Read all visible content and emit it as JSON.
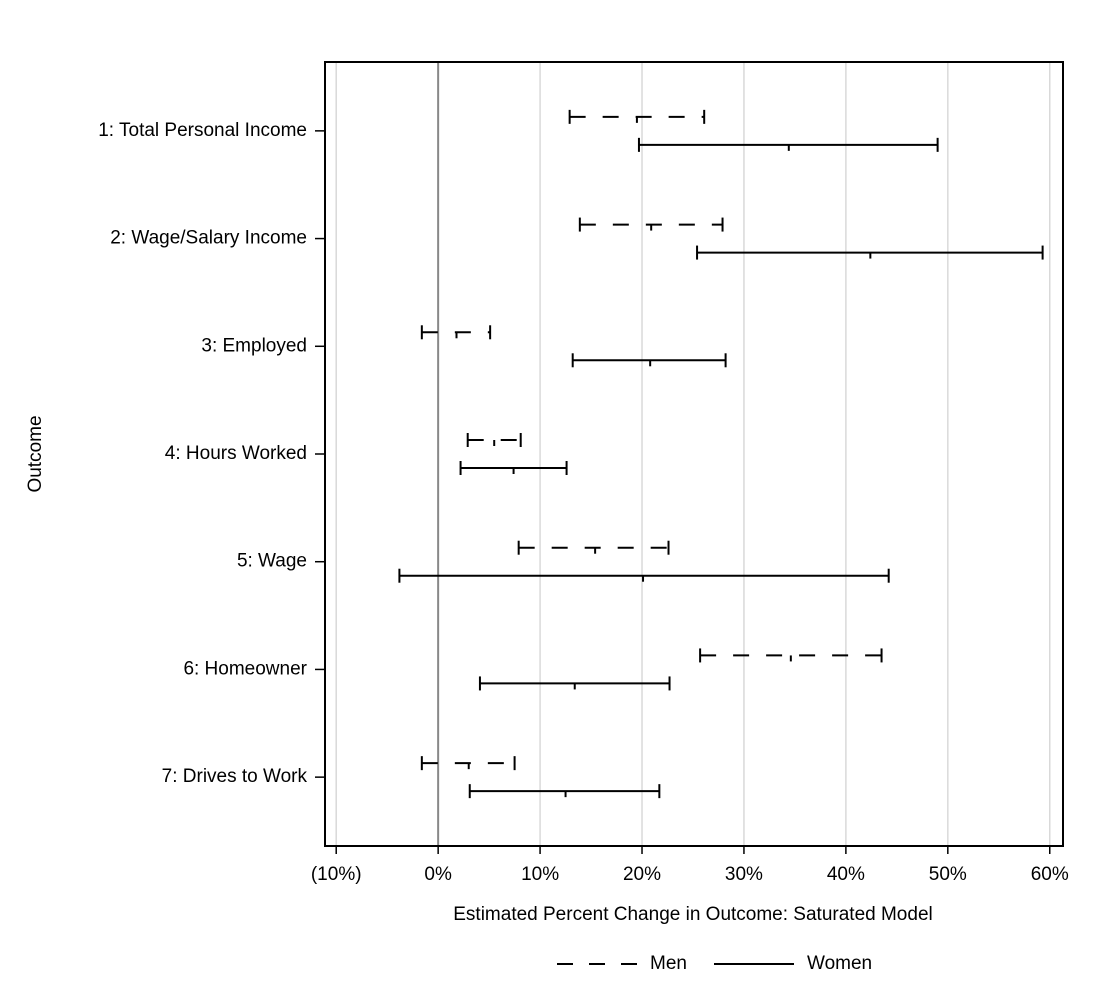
{
  "chart_data": {
    "type": "interval",
    "x_label": "Estimated Percent Change in Outcome: Saturated Model",
    "y_label": "Outcome",
    "categories": [
      "1: Total Personal Income",
      "2: Wage/Salary Income",
      "3: Employed",
      "4: Hours Worked",
      "5: Wage",
      "6: Homeowner",
      "7: Drives to Work"
    ],
    "xlim": [
      -11.1,
      61.3
    ],
    "xticks": [
      {
        "value": -10,
        "label": "(10%)"
      },
      {
        "value": 0,
        "label": "0%"
      },
      {
        "value": 10,
        "label": "10%"
      },
      {
        "value": 20,
        "label": "20%"
      },
      {
        "value": 30,
        "label": "30%"
      },
      {
        "value": 40,
        "label": "40%"
      },
      {
        "value": 50,
        "label": "50%"
      },
      {
        "value": 60,
        "label": "60%"
      }
    ],
    "grid": true,
    "legend": "bottom",
    "series": [
      {
        "name": "Men",
        "color": "#000000",
        "dashed": true,
        "lower": [
          12.9,
          13.9,
          -1.6,
          2.9,
          7.9,
          25.7,
          -1.6
        ],
        "values": [
          19.5,
          20.9,
          1.8,
          5.5,
          15.4,
          34.6,
          3.0
        ],
        "upper": [
          26.1,
          27.9,
          5.1,
          8.1,
          22.6,
          43.5,
          7.5
        ]
      },
      {
        "name": "Women",
        "color": "#000000",
        "dashed": false,
        "lower": [
          19.7,
          25.4,
          13.2,
          2.2,
          -3.8,
          4.1,
          3.1
        ],
        "values": [
          34.4,
          42.4,
          20.8,
          7.4,
          20.1,
          13.4,
          12.5
        ],
        "upper": [
          49.0,
          59.3,
          28.2,
          12.6,
          44.2,
          22.7,
          21.7
        ]
      }
    ]
  }
}
